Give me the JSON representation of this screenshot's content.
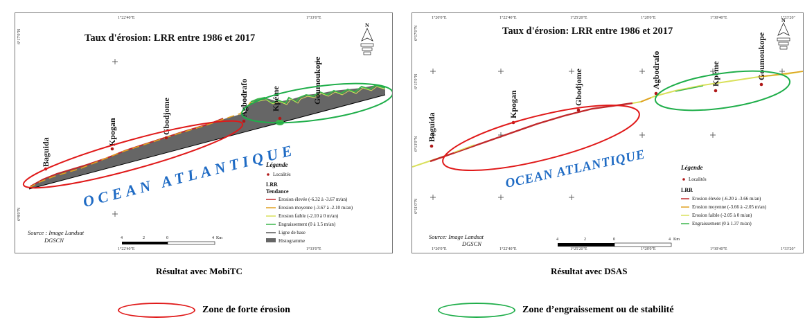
{
  "colors": {
    "erosion_high": "#c0282a",
    "erosion_medium": "#e0a020",
    "erosion_low": "#d9e05a",
    "accretion": "#3ab54a",
    "baseline": "#000000",
    "histogram": "#666666",
    "ocean_text": "#1f6bc4",
    "zone_erosion": "#e01919",
    "zone_accretion": "#1fae4a"
  },
  "left_map": {
    "title": "Taux d'érosion: LRR entre 1986 et 2017",
    "coords": {
      "top_a": "1°22'40\"E",
      "top_b": "1°33'0\"E",
      "bottom_a": "1°22'40\"E",
      "bottom_b": "1°33'0\"E",
      "left_a": "6°17'0\"N",
      "left_b": "6°8'0\"N"
    },
    "localities": [
      "Baguida",
      "Kpogan",
      "Gbodjome",
      "Agbodrafo",
      "Kpéme",
      "Goumoukope"
    ],
    "ocean_label": "OCEAN ATLANTIQUE",
    "legend": {
      "title": "Légende",
      "localites": "Localités",
      "lrr": "LRR",
      "tendance": "Tendance",
      "items": [
        "Erosion élevée (-6.32 à -3.67 m/an)",
        "Erosion moyenne (-3.67 à -2.10 m/an)",
        "Erosion faible (-2.10 à 0 m/an)",
        "Engraissement (0 à 1.5 m/an)",
        "Ligne de base",
        "Histogramme"
      ]
    },
    "source_line1": "Source : Image Landsat",
    "source_line2": "DGSCN",
    "scale": {
      "t0": "4",
      "t1": "2",
      "t2": "0",
      "t3": "4",
      "unit": "Km"
    },
    "caption": "Résultat avec MobiTC"
  },
  "right_map": {
    "title": "Taux d'érosion: LRR entre 1986 et 2017",
    "coords": {
      "top": [
        "1°20'0\"E",
        "1°22'40\"E",
        "1°25'20\"E",
        "1°28'0\"E",
        "1°30'40\"E",
        "1°33'20\""
      ],
      "bottom": [
        "1°20'0\"E",
        "1°22'40\"E",
        "1°25'20\"E",
        "1°28'0\"E",
        "1°30'40\"E",
        "1°33'20\""
      ],
      "left_a": "6°17'0\"N",
      "left_b": "6°15'0\"N",
      "left_c": "6°13'0\"N",
      "left_d": "6°11'0\"N"
    },
    "localities": [
      "Baguida",
      "Kpogan",
      "Gbodjome",
      "Agbodrafo",
      "Kpéme",
      "Goumoukope"
    ],
    "ocean_label": "OCEAN ATLANTIQUE",
    "legend": {
      "title": "Légende",
      "localites": "Localités",
      "lrr": "LRR",
      "items": [
        "Erosion élevée (-6.20 à -3.66 m/an)",
        "Erosion moyenne (-3.66 à -2.05 m/an)",
        "Erosion faible (-2.05 à 0 m/an)",
        "Engraissement (0 à 1.37 m/an)"
      ]
    },
    "source_line1": "Source: Image Landsat",
    "source_line2": "DGSCN",
    "scale": {
      "t0": "4",
      "t1": "2",
      "t2": "0",
      "t3": "4",
      "unit": "Km"
    },
    "caption": "Résultat avec DSAS"
  },
  "zones": {
    "erosion": "Zone de forte érosion",
    "accretion": "Zone d’engraissement ou de stabilité"
  }
}
